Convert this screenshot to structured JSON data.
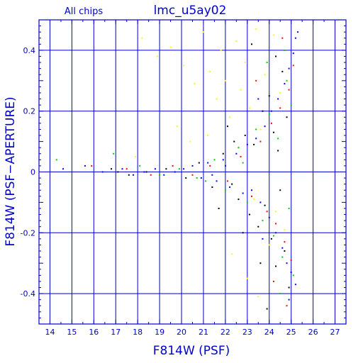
{
  "chart_data": {
    "type": "scatter",
    "title": "lmc_u5ay02",
    "subtitle": "All chips",
    "xlabel": "F814W (PSF)",
    "ylabel": "F814W (PSF−APERTURE)",
    "xlim": [
      13.5,
      27.5
    ],
    "ylim": [
      -0.5,
      0.5
    ],
    "xticks": [
      14,
      15,
      16,
      17,
      18,
      19,
      20,
      21,
      22,
      23,
      24,
      25,
      26,
      27
    ],
    "yticks": [
      -0.4,
      -0.2,
      0,
      0.2,
      0.4
    ],
    "xtick_labels": [
      "14",
      "15",
      "16",
      "17",
      "18",
      "19",
      "20",
      "21",
      "22",
      "23",
      "24",
      "25",
      "26",
      "27"
    ],
    "ytick_labels": [
      "-0.4",
      "-0.2",
      "0",
      "0.2",
      "0.4"
    ],
    "grid": true,
    "series": [
      {
        "color": "#000000",
        "values": [
          [
            16.8,
            0.01
          ],
          [
            17.1,
            0.0
          ],
          [
            17.6,
            -0.01
          ],
          [
            18.4,
            0.0
          ],
          [
            19.3,
            0.01
          ],
          [
            20.2,
            -0.02
          ],
          [
            20.8,
            0.03
          ],
          [
            21.4,
            -0.05
          ],
          [
            21.9,
            0.06
          ],
          [
            22.3,
            -0.04
          ],
          [
            22.6,
            -0.09
          ],
          [
            22.9,
            0.12
          ],
          [
            23.1,
            -0.14
          ],
          [
            23.3,
            0.09
          ],
          [
            23.5,
            -0.18
          ],
          [
            23.7,
            0.2
          ],
          [
            23.8,
            -0.11
          ],
          [
            24.0,
            0.25
          ],
          [
            24.1,
            -0.22
          ],
          [
            24.2,
            0.13
          ],
          [
            24.3,
            -0.31
          ],
          [
            24.4,
            0.07
          ],
          [
            24.5,
            -0.06
          ],
          [
            24.6,
            0.33
          ],
          [
            24.7,
            -0.26
          ],
          [
            24.8,
            0.18
          ],
          [
            24.9,
            -0.38
          ],
          [
            23.2,
            0.42
          ],
          [
            22.8,
            -0.2
          ],
          [
            21.7,
            -0.12
          ],
          [
            22.1,
            0.15
          ],
          [
            23.9,
            -0.45
          ],
          [
            24.3,
            0.38
          ],
          [
            22.4,
            0.1
          ],
          [
            23.6,
            -0.3
          ]
        ]
      },
      {
        "color": "#ffff00",
        "values": [
          [
            18.2,
            0.44
          ],
          [
            18.9,
            0.38
          ],
          [
            19.5,
            0.41
          ],
          [
            20.1,
            0.35
          ],
          [
            20.6,
            0.29
          ],
          [
            21.0,
            0.46
          ],
          [
            21.3,
            0.33
          ],
          [
            21.6,
            0.24
          ],
          [
            21.8,
            0.4
          ],
          [
            22.0,
            0.3
          ],
          [
            22.2,
            0.18
          ],
          [
            22.5,
            0.43
          ],
          [
            22.7,
            0.27
          ],
          [
            22.9,
            0.36
          ],
          [
            23.1,
            0.21
          ],
          [
            23.4,
            0.47
          ],
          [
            23.6,
            0.14
          ],
          [
            23.8,
            0.32
          ],
          [
            24.0,
            -0.24
          ],
          [
            24.2,
            0.45
          ],
          [
            24.5,
            0.26
          ],
          [
            24.7,
            -0.19
          ],
          [
            20.4,
            0.1
          ],
          [
            19.8,
            0.15
          ],
          [
            21.2,
            0.12
          ],
          [
            22.3,
            -0.27
          ],
          [
            23.0,
            -0.35
          ],
          [
            23.5,
            -0.41
          ],
          [
            24.3,
            -0.13
          ],
          [
            17.9,
            0.05
          ],
          [
            22.6,
            0.08
          ],
          [
            23.3,
            -0.09
          ]
        ]
      },
      {
        "color": "#00cc00",
        "values": [
          [
            14.3,
            0.04
          ],
          [
            16.9,
            0.06
          ],
          [
            18.1,
            0.02
          ],
          [
            19.0,
            -0.01
          ],
          [
            19.9,
            0.01
          ],
          [
            20.7,
            -0.02
          ],
          [
            21.5,
            0.04
          ],
          [
            22.0,
            -0.06
          ],
          [
            22.6,
            0.08
          ],
          [
            23.0,
            -0.1
          ],
          [
            23.4,
            0.14
          ],
          [
            23.7,
            -0.16
          ],
          [
            24.0,
            0.19
          ],
          [
            24.2,
            -0.21
          ],
          [
            24.4,
            0.11
          ],
          [
            24.6,
            -0.28
          ],
          [
            24.8,
            0.3
          ],
          [
            24.9,
            -0.12
          ],
          [
            25.0,
            0.22
          ],
          [
            25.1,
            -0.34
          ],
          [
            23.9,
            0.36
          ],
          [
            24.5,
            -0.4
          ],
          [
            22.8,
            0.03
          ],
          [
            21.1,
            -0.03
          ],
          [
            24.7,
            0.4
          ]
        ]
      },
      {
        "color": "#ff0000",
        "values": [
          [
            15.9,
            0.02
          ],
          [
            17.5,
            0.01
          ],
          [
            18.6,
            -0.01
          ],
          [
            19.6,
            0.02
          ],
          [
            20.5,
            -0.01
          ],
          [
            21.3,
            0.02
          ],
          [
            22.1,
            -0.03
          ],
          [
            22.7,
            0.05
          ],
          [
            23.2,
            -0.08
          ],
          [
            23.6,
            0.1
          ],
          [
            23.9,
            -0.13
          ],
          [
            24.1,
            0.16
          ],
          [
            24.3,
            -0.17
          ],
          [
            24.5,
            0.21
          ],
          [
            24.7,
            -0.23
          ],
          [
            24.9,
            0.27
          ],
          [
            25.0,
            -0.29
          ],
          [
            25.1,
            0.35
          ],
          [
            24.2,
            -0.36
          ],
          [
            23.4,
            0.3
          ],
          [
            24.8,
            -0.44
          ],
          [
            24.6,
            0.44
          ]
        ]
      },
      {
        "color": "#0000ff",
        "values": [
          [
            14.6,
            0.01
          ],
          [
            15.6,
            0.02
          ],
          [
            16.4,
            0.0
          ],
          [
            17.3,
            0.01
          ],
          [
            17.8,
            -0.01
          ],
          [
            18.3,
            0.0
          ],
          [
            18.8,
            0.01
          ],
          [
            19.2,
            -0.01
          ],
          [
            19.7,
            0.0
          ],
          [
            20.1,
            0.01
          ],
          [
            20.5,
            0.02
          ],
          [
            20.9,
            -0.02
          ],
          [
            21.2,
            0.03
          ],
          [
            21.6,
            -0.03
          ],
          [
            21.9,
            0.04
          ],
          [
            22.2,
            -0.05
          ],
          [
            22.5,
            0.06
          ],
          [
            22.8,
            -0.07
          ],
          [
            23.0,
            0.09
          ],
          [
            23.2,
            -0.06
          ],
          [
            23.4,
            0.11
          ],
          [
            23.6,
            -0.1
          ],
          [
            23.8,
            0.15
          ],
          [
            24.0,
            -0.15
          ],
          [
            24.1,
            0.2
          ],
          [
            24.3,
            -0.2
          ],
          [
            24.4,
            0.24
          ],
          [
            24.6,
            -0.25
          ],
          [
            24.7,
            0.29
          ],
          [
            24.8,
            -0.3
          ],
          [
            24.9,
            0.34
          ],
          [
            25.0,
            -0.33
          ],
          [
            25.1,
            0.39
          ],
          [
            25.2,
            -0.37
          ],
          [
            25.3,
            0.46
          ],
          [
            25.2,
            0.44
          ],
          [
            24.9,
            -0.42
          ],
          [
            23.7,
            -0.22
          ],
          [
            23.5,
            0.24
          ],
          [
            22.0,
            0.02
          ],
          [
            21.4,
            -0.01
          ]
        ]
      }
    ]
  }
}
